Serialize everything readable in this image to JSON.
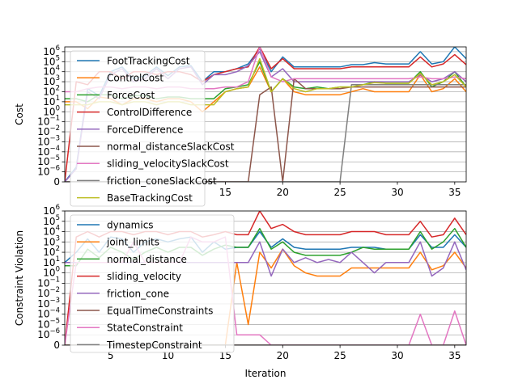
{
  "chart_data": [
    {
      "type": "line",
      "ylabel": "Cost",
      "xlabel": "",
      "xlim": [
        1,
        36
      ],
      "y_scale": "symlog",
      "ylim": [
        0,
        3000000
      ],
      "grid": "y",
      "legend": "upper-left",
      "x_ticks": [
        "15",
        "20",
        "25",
        "30",
        "35"
      ],
      "y_ticks": [
        "0",
        "10^-6",
        "10^-5",
        "10^-4",
        "10^-3",
        "10^-2",
        "10^-1",
        "10^0",
        "10^1",
        "10^2",
        "10^3",
        "10^4",
        "10^5",
        "10^6"
      ],
      "x": [
        1,
        2,
        3,
        4,
        5,
        6,
        7,
        8,
        9,
        10,
        11,
        12,
        13,
        14,
        15,
        16,
        17,
        18,
        19,
        20,
        21,
        22,
        23,
        24,
        25,
        26,
        27,
        28,
        29,
        30,
        31,
        32,
        33,
        34,
        35,
        36
      ],
      "series": [
        {
          "name": "FootTrackingCost",
          "color": "#1f77b4",
          "values": [
            0,
            3e-06,
            200,
            40,
            10000,
            30000,
            2000,
            4000,
            30000,
            4000,
            30000,
            40000,
            1000,
            10000,
            10000,
            20000,
            60000,
            2000000,
            10000,
            300000,
            30000,
            30000,
            30000,
            30000,
            30000,
            50000,
            50000,
            80000,
            60000,
            60000,
            60000,
            1000000,
            60000,
            100000,
            3000000,
            200000
          ]
        },
        {
          "name": "ControlCost",
          "color": "#ff7f0e",
          "values": [
            10,
            10,
            2,
            30,
            20,
            5,
            20,
            20,
            10,
            20,
            20,
            10,
            1,
            10,
            100,
            200,
            300,
            30000,
            100,
            2000,
            100,
            50,
            50,
            50,
            50,
            100,
            200,
            100,
            100,
            100,
            100,
            5000,
            100,
            200,
            2000,
            100
          ]
        },
        {
          "name": "ForceCost",
          "color": "#2ca02c",
          "values": [
            20,
            20,
            10,
            50,
            50,
            20,
            40,
            40,
            20,
            30,
            30,
            20,
            20,
            20,
            200,
            300,
            500,
            100000,
            100,
            2000,
            300,
            200,
            300,
            200,
            300,
            300,
            500,
            1000,
            700,
            700,
            700,
            10000,
            300,
            1000,
            10000,
            300
          ]
        },
        {
          "name": "ControlDifference",
          "color": "#d62728",
          "values": [
            0,
            1000,
            500,
            10000,
            10000,
            2000,
            10000,
            10000,
            5000,
            10000,
            10000,
            5000,
            1000,
            5000,
            10000,
            20000,
            30000,
            3000000,
            20000,
            200000,
            20000,
            20000,
            20000,
            20000,
            20000,
            30000,
            30000,
            30000,
            30000,
            30000,
            30000,
            300000,
            30000,
            60000,
            500000,
            50000
          ]
        },
        {
          "name": "ForceDifference",
          "color": "#9467bd",
          "values": [
            0,
            2e-06,
            100,
            20,
            5000,
            20000,
            1000,
            2000,
            20000,
            2000,
            20000,
            30000,
            500,
            5000,
            5000,
            10000,
            40000,
            1000000,
            3000,
            20000,
            1000,
            1000,
            1000,
            1000,
            1000,
            1000,
            1000,
            1000,
            1000,
            1000,
            1000,
            5000,
            1000,
            2000,
            10000,
            1000
          ]
        },
        {
          "name": "normal_distanceSlackCost",
          "color": "#8c564b",
          "values": [
            0,
            0,
            0,
            0,
            0,
            0,
            0,
            0,
            0,
            0,
            0,
            0,
            0,
            0,
            0,
            0,
            0,
            50,
            300,
            0,
            2000,
            200,
            200,
            200,
            200,
            300,
            300,
            300,
            300,
            300,
            300,
            300,
            300,
            300,
            300,
            300
          ]
        },
        {
          "name": "sliding_velocitySlackCost",
          "color": "#e377c2",
          "values": [
            100,
            100,
            200,
            300,
            300,
            200,
            300,
            300,
            200,
            300,
            300,
            200,
            200,
            200,
            300,
            300,
            1000,
            3000000,
            3000,
            1000,
            2000,
            2000,
            2000,
            2000,
            2000,
            2000,
            2000,
            2000,
            2000,
            2000,
            2000,
            3000,
            2000,
            2000,
            3000,
            2000
          ]
        },
        {
          "name": "friction_coneSlackCost",
          "color": "#7f7f7f",
          "values": [
            0,
            0,
            0,
            0,
            0,
            0,
            0,
            0,
            0,
            0,
            0,
            0,
            0,
            0,
            0,
            0,
            0,
            0,
            0,
            0,
            0,
            0,
            0,
            0,
            0,
            500,
            500,
            500,
            500,
            500,
            500,
            500,
            500,
            500,
            500,
            500
          ]
        },
        {
          "name": "BaseTrackingCost",
          "color": "#bcbd22",
          "values": [
            5,
            5,
            5,
            10,
            10,
            5,
            10,
            10,
            5,
            10,
            10,
            5,
            5,
            5,
            100,
            200,
            300,
            200000,
            100,
            2000,
            200,
            100,
            200,
            200,
            300,
            300,
            500,
            800,
            700,
            700,
            700,
            7000,
            500,
            1000,
            5000,
            300
          ]
        }
      ]
    },
    {
      "type": "line",
      "ylabel": "Constraint Violation",
      "xlabel": "Iteration",
      "xlim": [
        1,
        36
      ],
      "y_scale": "symlog",
      "ylim": [
        0,
        1000000
      ],
      "grid": "y",
      "legend": "upper-left",
      "x_ticks": [
        "5",
        "10",
        "15",
        "20",
        "25",
        "30",
        "35"
      ],
      "y_ticks": [
        "0",
        "10^-6",
        "10^-5",
        "10^-4",
        "10^-3",
        "10^-2",
        "10^-1",
        "10^0",
        "10^1",
        "10^2",
        "10^3",
        "10^4",
        "10^5",
        "10^6"
      ],
      "x": [
        1,
        2,
        3,
        4,
        5,
        6,
        7,
        8,
        9,
        10,
        11,
        12,
        13,
        14,
        15,
        16,
        17,
        18,
        19,
        20,
        21,
        22,
        23,
        24,
        25,
        26,
        27,
        28,
        29,
        30,
        31,
        32,
        33,
        34,
        35,
        36
      ],
      "series": [
        {
          "name": "dynamics",
          "color": "#1f77b4",
          "values": [
            10,
            100,
            2000,
            100,
            3000,
            2000,
            100,
            1000,
            2000,
            1000,
            2000,
            3000,
            100,
            1000,
            200,
            300,
            300,
            10000,
            300,
            2000,
            300,
            200,
            200,
            200,
            200,
            300,
            300,
            300,
            200,
            200,
            200,
            5000,
            300,
            300,
            5000,
            300
          ]
        },
        {
          "name": "joint_limits",
          "color": "#ff7f0e",
          "values": [
            0,
            0,
            0,
            0,
            0,
            0,
            0,
            0,
            0,
            0,
            0,
            0,
            0,
            0,
            0,
            10,
            1e-05,
            100,
            3,
            200,
            5,
            1,
            0.5,
            0.5,
            0.5,
            3,
            3,
            3,
            3,
            3,
            3,
            100,
            2,
            5,
            100,
            3
          ]
        },
        {
          "name": "normal_distance",
          "color": "#2ca02c",
          "values": [
            5,
            5,
            200,
            30,
            300,
            100,
            20,
            100,
            300,
            100,
            300,
            300,
            50,
            200,
            500,
            300,
            300,
            20000,
            200,
            1000,
            100,
            50,
            50,
            50,
            50,
            100,
            300,
            200,
            200,
            200,
            200,
            10000,
            200,
            1000,
            20000,
            300
          ]
        },
        {
          "name": "sliding_velocity",
          "color": "#d62728",
          "values": [
            0,
            3000,
            10000,
            3000,
            10000,
            10000,
            5000,
            10000,
            10000,
            5000,
            10000,
            10000,
            3000,
            5000,
            10000,
            5000,
            5000,
            1000000,
            20000,
            50000,
            10000,
            5000,
            5000,
            5000,
            5000,
            10000,
            10000,
            10000,
            5000,
            5000,
            5000,
            100000,
            3000,
            5000,
            200000,
            5000
          ]
        },
        {
          "name": "friction_cone",
          "color": "#9467bd",
          "values": [
            10,
            10,
            10,
            10,
            10,
            10,
            10,
            10,
            10,
            10,
            10,
            10,
            10,
            10,
            10,
            10,
            10,
            1000,
            0.5,
            200,
            10,
            30,
            10,
            20,
            10,
            100,
            10,
            1,
            10,
            10,
            10,
            1000,
            0.5,
            3,
            1000,
            2
          ]
        },
        {
          "name": "EqualTimeConstraints",
          "color": "#8c564b",
          "values": [
            0,
            0,
            0,
            0,
            0,
            0,
            0,
            0,
            0,
            0,
            0,
            0,
            0,
            0,
            0,
            0,
            0,
            0,
            0,
            0,
            0,
            0,
            0,
            0,
            0,
            0,
            0,
            0,
            0,
            0,
            0,
            0,
            0,
            0,
            0,
            0
          ]
        },
        {
          "name": "StateConstraint",
          "color": "#e377c2",
          "values": [
            0,
            10,
            10,
            10,
            10,
            10,
            1000,
            10,
            10,
            10,
            10,
            3000,
            1000,
            1000,
            3000,
            1e-06,
            1e-06,
            1e-06,
            0,
            0,
            0,
            0,
            0,
            0,
            0,
            0,
            0,
            0,
            0,
            0,
            0,
            0.0001,
            0,
            0,
            0.0002,
            0
          ]
        },
        {
          "name": "TimestepConstraint",
          "color": "#7f7f7f",
          "values": [
            0,
            0,
            0,
            0,
            0,
            0,
            0,
            0,
            0,
            0,
            0,
            0,
            0,
            0,
            0,
            0,
            0,
            0,
            0,
            0,
            0,
            0,
            0,
            0,
            0,
            0,
            0,
            0,
            0,
            0,
            0,
            0,
            0,
            0,
            0,
            0
          ]
        }
      ]
    }
  ]
}
